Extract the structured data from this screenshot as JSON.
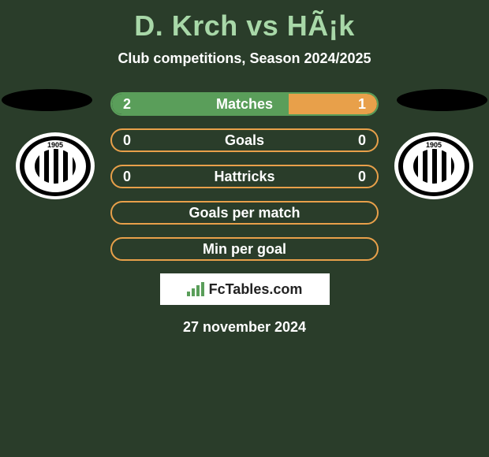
{
  "header": {
    "title": "D. Krch vs HÃ¡k",
    "title_color": "#a8d8a8",
    "title_fontsize": 36,
    "subtitle": "Club competitions, Season 2024/2025",
    "subtitle_color": "#ffffff",
    "subtitle_fontsize": 18
  },
  "background_color": "#2a3d2a",
  "shadow_color": "#000000",
  "club_logo": {
    "year": "1905",
    "ring_text": "SK DYNAMO ČESKÉ BUDĚJOVICE",
    "outer_color": "#ffffff",
    "ring_bg": "#000000",
    "stripes": [
      "#000000",
      "#ffffff"
    ]
  },
  "stats": [
    {
      "label": "Matches",
      "left_value": "2",
      "right_value": "1",
      "left_num": 2,
      "right_num": 1,
      "border_color": "#5a9e5a",
      "left_fill_color": "#5a9e5a",
      "right_fill_color": "#e8a04a",
      "left_fill_pct": 66.7,
      "right_fill_pct": 33.3
    },
    {
      "label": "Goals",
      "left_value": "0",
      "right_value": "0",
      "left_num": 0,
      "right_num": 0,
      "border_color": "#e8a04a",
      "left_fill_color": "#5a9e5a",
      "right_fill_color": "#e8a04a",
      "left_fill_pct": 0,
      "right_fill_pct": 0
    },
    {
      "label": "Hattricks",
      "left_value": "0",
      "right_value": "0",
      "left_num": 0,
      "right_num": 0,
      "border_color": "#e8a04a",
      "left_fill_color": "#5a9e5a",
      "right_fill_color": "#e8a04a",
      "left_fill_pct": 0,
      "right_fill_pct": 0
    },
    {
      "label": "Goals per match",
      "left_value": "",
      "right_value": "",
      "left_num": 0,
      "right_num": 0,
      "border_color": "#e8a04a",
      "left_fill_color": "#5a9e5a",
      "right_fill_color": "#e8a04a",
      "left_fill_pct": 0,
      "right_fill_pct": 0
    },
    {
      "label": "Min per goal",
      "left_value": "",
      "right_value": "",
      "left_num": 0,
      "right_num": 0,
      "border_color": "#e8a04a",
      "left_fill_color": "#5a9e5a",
      "right_fill_color": "#e8a04a",
      "left_fill_pct": 0,
      "right_fill_pct": 0
    }
  ],
  "bar_style": {
    "height": 30,
    "border_radius": 15,
    "border_width": 2,
    "label_color": "#ffffff",
    "value_color": "#ffffff",
    "fontsize": 18
  },
  "badge": {
    "text": "FcTables.com",
    "background": "#ffffff",
    "text_color": "#222222",
    "icon_color": "#5a9e5a",
    "icon_bars": [
      6,
      10,
      14,
      18
    ]
  },
  "footer": {
    "date": "27 november 2024",
    "color": "#ffffff",
    "fontsize": 18
  }
}
